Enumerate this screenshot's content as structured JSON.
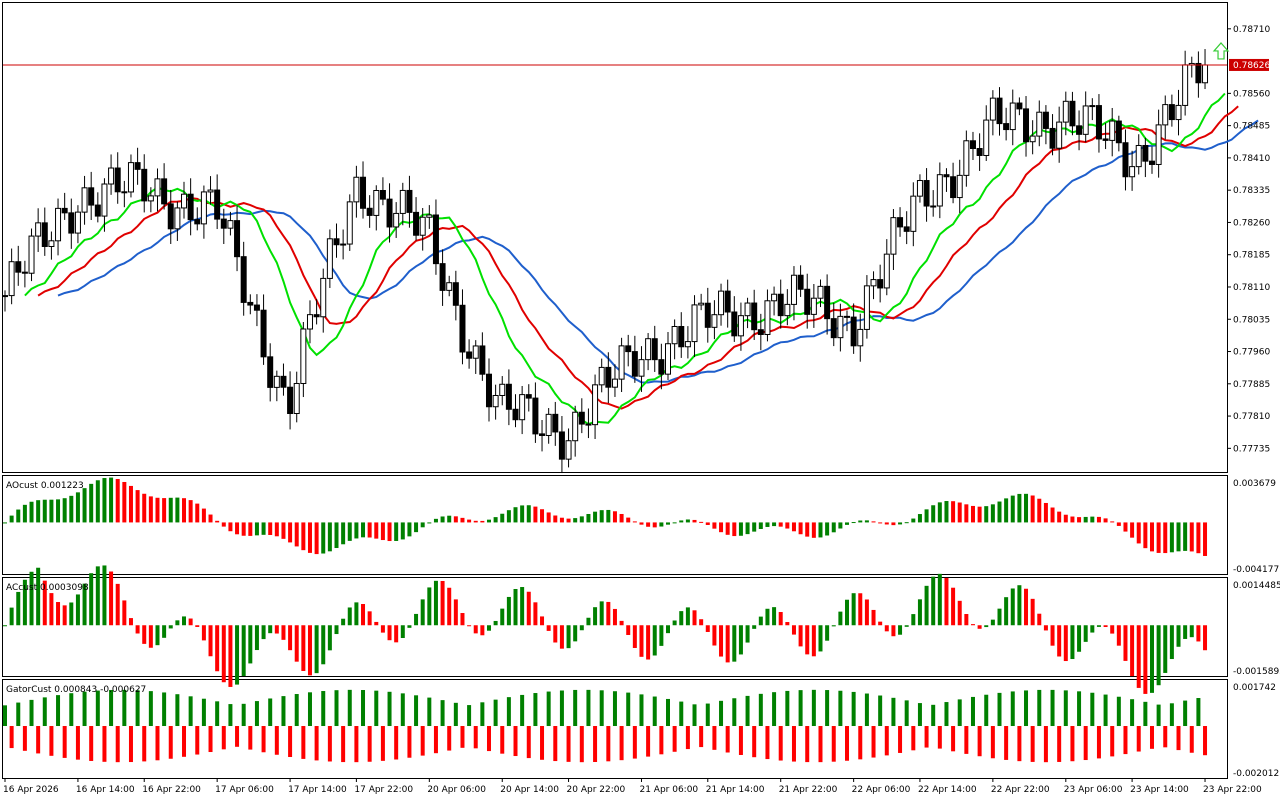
{
  "chart_data": [
    {
      "type": "candlestick",
      "pane": "main",
      "price_axis_labels": [
        "0.78710",
        "0.78626",
        "0.78560",
        "0.78485",
        "0.78410",
        "0.78335",
        "0.78260",
        "0.78185",
        "0.78110",
        "0.78035",
        "0.77960",
        "0.77885",
        "0.77810",
        "0.77735"
      ],
      "y_range": [
        0.7768,
        0.7877
      ],
      "current_price": "0.78626",
      "current_price_value": 0.78626,
      "colors": {
        "bull_body": "#ffffff",
        "bear_body": "#000000",
        "wick": "#000000",
        "jaw": "#1f5fcc",
        "teeth": "#e00000",
        "lips": "#00e000",
        "price_line": "#cc0000",
        "price_tag": "#cc0000",
        "signal_arrow": "#35cc35"
      },
      "key_closes": [
        {
          "time": "16 Apr 2026",
          "close": 0.7809
        },
        {
          "time": "16 Apr 14:00",
          "close": 0.7832
        },
        {
          "time": "16 Apr 22:00",
          "close": 0.7834
        },
        {
          "time": "17 Apr 06:00",
          "close": 0.7828
        },
        {
          "time": "17 Apr 14:00",
          "close": 0.7784
        },
        {
          "time": "17 Apr 22:00",
          "close": 0.7836
        },
        {
          "time": "20 Apr 06:00",
          "close": 0.7822
        },
        {
          "time": "20 Apr 14:00",
          "close": 0.7782
        },
        {
          "time": "20 Apr 22:00",
          "close": 0.7778
        },
        {
          "time": "21 Apr 06:00",
          "close": 0.7796
        },
        {
          "time": "21 Apr 14:00",
          "close": 0.7803
        },
        {
          "time": "21 Apr 22:00",
          "close": 0.7808
        },
        {
          "time": "22 Apr 06:00",
          "close": 0.7803
        },
        {
          "time": "22 Apr 14:00",
          "close": 0.7832
        },
        {
          "time": "22 Apr 22:00",
          "close": 0.7848
        },
        {
          "time": "23 Apr 06:00",
          "close": 0.7851
        },
        {
          "time": "23 Apr 14:00",
          "close": 0.7841
        },
        {
          "time": "23 Apr 22:00",
          "close": 0.7862
        }
      ]
    },
    {
      "type": "histogram",
      "pane": "ao",
      "title": "AOcust 0.001223",
      "axis_labels": [
        "0.003679",
        "-0.004177"
      ],
      "y_range": [
        -0.004177,
        0.003679
      ],
      "colors": {
        "up": "#008000",
        "down": "#ff0000"
      }
    },
    {
      "type": "histogram",
      "pane": "ac",
      "title": "ACcust 0.0003098",
      "axis_labels": [
        "0.0014485",
        "-0.0015895"
      ],
      "y_range": [
        -0.0015895,
        0.0014485
      ],
      "colors": {
        "up": "#008000",
        "down": "#ff0000"
      }
    },
    {
      "type": "histogram",
      "pane": "gator",
      "title": "GatorCust 0.000843 -0.000627",
      "axis_labels": [
        "0.001742",
        "-0.002012"
      ],
      "y_range": [
        -0.002012,
        0.001742
      ],
      "colors": {
        "up": "#008000",
        "down": "#ff0000"
      }
    }
  ],
  "time_axis": [
    "16 Apr 2026",
    "16 Apr 14:00",
    "16 Apr 22:00",
    "17 Apr 06:00",
    "17 Apr 14:00",
    "17 Apr 22:00",
    "20 Apr 06:00",
    "20 Apr 14:00",
    "20 Apr 22:00",
    "21 Apr 06:00",
    "21 Apr 14:00",
    "21 Apr 22:00",
    "22 Apr 06:00",
    "22 Apr 14:00",
    "22 Apr 22:00",
    "23 Apr 06:00",
    "23 Apr 14:00",
    "23 Apr 22:00"
  ],
  "bar_count": 182,
  "ao_title": "AOcust 0.001223",
  "ac_title": "ACcust 0.0003098",
  "gator_title": "GatorCust 0.000843 -0.000627",
  "current_price": "0.78626"
}
